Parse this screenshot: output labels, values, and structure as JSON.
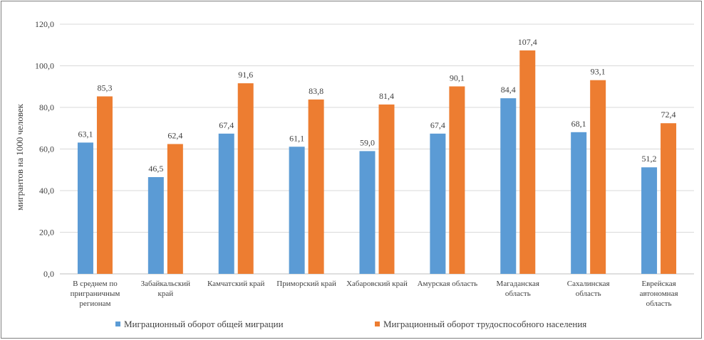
{
  "chart_data": {
    "type": "bar",
    "title": "",
    "xlabel": "",
    "ylabel": "мигрантов на 1000 человек",
    "ylim": [
      0,
      120
    ],
    "yticks": [
      "0,0",
      "20,0",
      "40,0",
      "60,0",
      "80,0",
      "100,0",
      "120,0"
    ],
    "grid": true,
    "legend_position": "bottom",
    "categories": [
      [
        "В среднем по",
        "приграничным",
        "регионам"
      ],
      [
        "Забайкальский",
        "край"
      ],
      [
        "Камчатский край"
      ],
      [
        "Приморский край"
      ],
      [
        "Хабаровский край"
      ],
      [
        "Амурская  область"
      ],
      [
        "Магаданская",
        "область"
      ],
      [
        "Сахалинская",
        "область"
      ],
      [
        "Еврейская",
        "автономная",
        "область"
      ]
    ],
    "series": [
      {
        "name": "Миграционный  оборот общей миграции",
        "color": "#5b9bd5",
        "values": [
          63.1,
          46.5,
          67.4,
          61.1,
          59.0,
          67.4,
          84.4,
          68.1,
          51.2
        ],
        "labels": [
          "63,1",
          "46,5",
          "67,4",
          "61,1",
          "59,0",
          "67,4",
          "84,4",
          "68,1",
          "51,2"
        ]
      },
      {
        "name": "Миграционный  оборот трудоспособного населения",
        "color": "#ed7d31",
        "values": [
          85.3,
          62.4,
          91.6,
          83.8,
          81.4,
          90.1,
          107.4,
          93.1,
          72.4
        ],
        "labels": [
          "85,3",
          "62,4",
          "91,6",
          "83,8",
          "81,4",
          "90,1",
          "107,4",
          "93,1",
          "72,4"
        ]
      }
    ]
  }
}
